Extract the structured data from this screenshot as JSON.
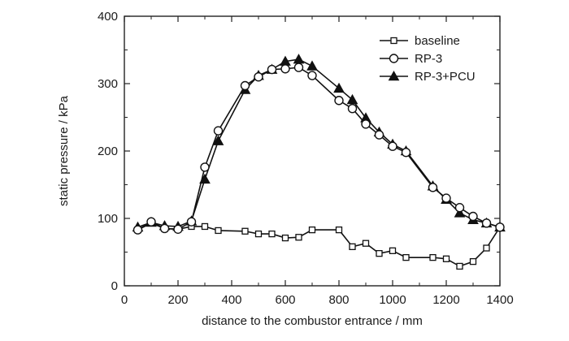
{
  "chart_data": {
    "type": "line",
    "xlabel": "distance to the combustor entrance / mm",
    "ylabel": "static pressure / kPa",
    "xlim": [
      0,
      1400
    ],
    "ylim": [
      0,
      400
    ],
    "xticks": [
      0,
      200,
      400,
      600,
      800,
      1000,
      1200,
      1400
    ],
    "yticks": [
      0,
      100,
      200,
      300,
      400
    ],
    "grid": false,
    "legend_position": "top-right",
    "series": [
      {
        "name": "baseline",
        "marker": "square-open",
        "x": [
          50,
          100,
          150,
          200,
          250,
          300,
          350,
          450,
          500,
          550,
          600,
          650,
          700,
          800,
          850,
          900,
          950,
          1000,
          1050,
          1150,
          1200,
          1250,
          1300,
          1350,
          1400
        ],
        "y": [
          83,
          93,
          85,
          84,
          88,
          88,
          82,
          81,
          77,
          77,
          71,
          72,
          83,
          83,
          58,
          63,
          48,
          52,
          42,
          42,
          40,
          29,
          36,
          56,
          87
        ]
      },
      {
        "name": "RP-3",
        "marker": "circle-open",
        "x": [
          50,
          100,
          150,
          200,
          250,
          300,
          350,
          450,
          500,
          550,
          600,
          650,
          700,
          800,
          850,
          900,
          950,
          1000,
          1050,
          1150,
          1200,
          1250,
          1300,
          1350,
          1400
        ],
        "y": [
          83,
          95,
          85,
          84,
          95,
          176,
          230,
          297,
          310,
          321,
          322,
          324,
          312,
          275,
          263,
          240,
          224,
          207,
          198,
          146,
          130,
          116,
          103,
          93,
          87
        ]
      },
      {
        "name": "RP-3+PCU",
        "marker": "triangle-filled",
        "x": [
          50,
          100,
          150,
          200,
          250,
          300,
          350,
          450,
          500,
          550,
          600,
          650,
          700,
          800,
          850,
          900,
          950,
          1000,
          1050,
          1150,
          1200,
          1250,
          1300,
          1350,
          1400
        ],
        "y": [
          87,
          94,
          89,
          88,
          96,
          158,
          215,
          291,
          312,
          321,
          333,
          336,
          326,
          293,
          276,
          249,
          228,
          210,
          200,
          148,
          128,
          108,
          98,
          93,
          87
        ]
      }
    ]
  }
}
